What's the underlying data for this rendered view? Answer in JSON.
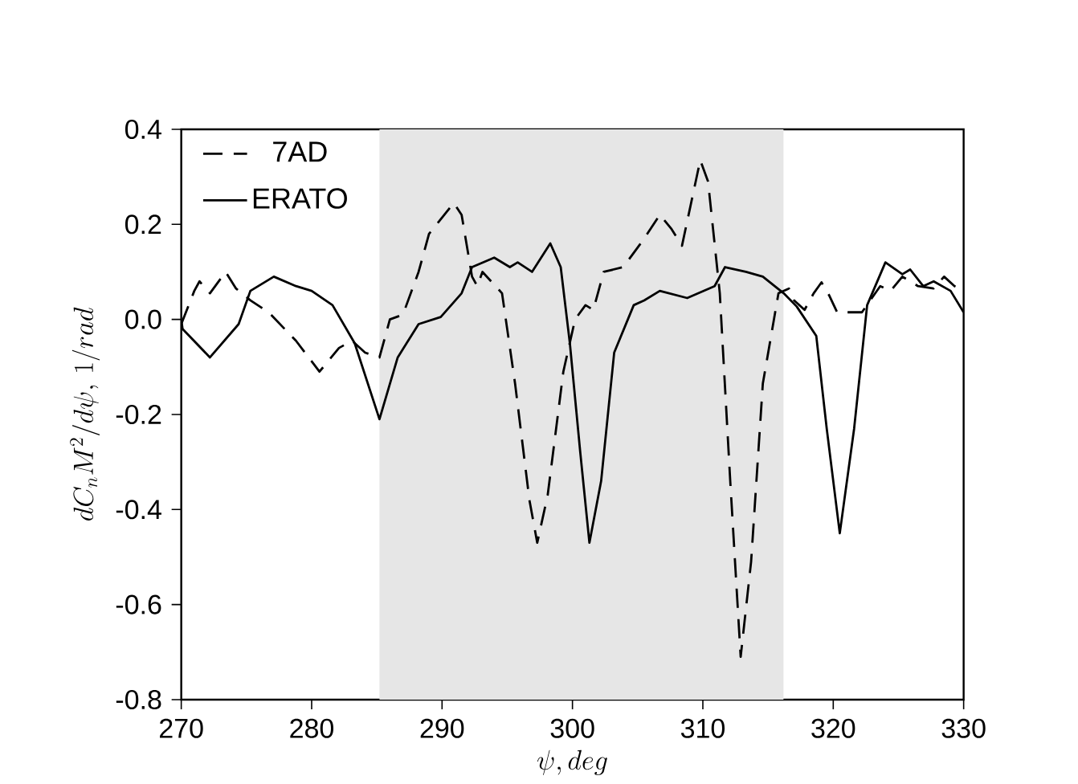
{
  "chart_data": {
    "type": "line",
    "xlabel": "\\psi, deg",
    "ylabel": "dC_{n}M^{2}/d\\psi,\\,1/rad",
    "xlim": [
      270,
      330
    ],
    "xticks": [
      270,
      280,
      290,
      300,
      310,
      320,
      330
    ],
    "ylim": [
      -0.8,
      0.4
    ],
    "yticks": [
      {
        "value": -0.8,
        "label": "-0.8"
      },
      {
        "value": -0.6,
        "label": "-0.6"
      },
      {
        "value": -0.4,
        "label": "-0.4"
      },
      {
        "value": -0.2,
        "label": "-0.2"
      },
      {
        "value": 0,
        "label": "0.0"
      },
      {
        "value": 0.2,
        "label": "0.2"
      },
      {
        "value": 0.4,
        "label": "0.4"
      }
    ],
    "grid": false,
    "legend": "top left",
    "marker": "none",
    "bands": [
      {
        "axis": "x",
        "from": 285.2,
        "to": 316.2,
        "color": "#e6e6e6"
      }
    ],
    "series": [
      {
        "name": "7AD",
        "color": "#000000",
        "line_style": "dashed",
        "x": [
          270,
          271.0,
          271.4,
          272.2,
          273.4,
          274.2,
          275.3,
          276.7,
          278.8,
          280.6,
          282.1,
          283.1,
          284.1,
          285.2,
          286.0,
          287.0,
          288.2,
          289.0,
          290.9,
          291.5,
          292.3,
          292.7,
          293.1,
          294.6,
          295.6,
          296.7,
          297.3,
          298.1,
          299.3,
          300.2,
          301.0,
          301.6,
          302.4,
          303.9,
          305.5,
          306.7,
          307.6,
          308.4,
          309.8,
          310.4,
          311.3,
          312.1,
          312.9,
          313.7,
          314.6,
          315.8,
          316.6,
          317.0,
          317.8,
          318.5,
          319.1,
          319.7,
          320.3,
          322.2,
          323.6,
          324.4,
          325.3,
          326.5,
          327.7,
          328.5,
          329.3,
          330
        ],
        "values": [
          -0.01,
          0.06,
          0.08,
          0.055,
          0.1,
          0.065,
          0.04,
          0.015,
          -0.045,
          -0.11,
          -0.06,
          -0.045,
          -0.07,
          -0.08,
          0.0,
          0.01,
          0.1,
          0.18,
          0.245,
          0.22,
          0.09,
          0.07,
          0.1,
          0.055,
          -0.135,
          -0.38,
          -0.47,
          -0.37,
          -0.11,
          0.0,
          0.03,
          0.02,
          0.1,
          0.11,
          0.17,
          0.22,
          0.19,
          0.155,
          0.335,
          0.29,
          0.055,
          -0.34,
          -0.71,
          -0.51,
          -0.135,
          0.055,
          0.065,
          0.04,
          0.02,
          0.055,
          0.078,
          0.05,
          0.015,
          0.015,
          0.07,
          0.06,
          0.09,
          0.07,
          0.065,
          0.09,
          0.07,
          0.06
        ]
      },
      {
        "name": "ERATO",
        "color": "#000000",
        "line_style": "solid",
        "x": [
          270,
          270.1,
          272.2,
          274.4,
          275.3,
          277.1,
          278.8,
          280.0,
          281.6,
          283.3,
          285.2,
          286.6,
          288.2,
          289.9,
          291.5,
          292.3,
          294.0,
          295.2,
          295.8,
          296.9,
          298.3,
          299.1,
          299.8,
          300.6,
          301.3,
          302.2,
          303.2,
          304.7,
          305.5,
          306.7,
          308.8,
          310.9,
          311.7,
          313.3,
          314.6,
          316.2,
          317.2,
          318.7,
          319.5,
          320.5,
          321.6,
          322.6,
          324.0,
          325.3,
          325.9,
          326.9,
          327.7,
          329.0,
          330
        ],
        "values": [
          0.0,
          -0.02,
          -0.08,
          -0.01,
          0.06,
          0.09,
          0.07,
          0.06,
          0.03,
          -0.05,
          -0.21,
          -0.08,
          -0.01,
          0.005,
          0.055,
          0.11,
          0.13,
          0.11,
          0.12,
          0.1,
          0.16,
          0.11,
          -0.05,
          -0.28,
          -0.47,
          -0.34,
          -0.07,
          0.03,
          0.04,
          0.06,
          0.045,
          0.07,
          0.11,
          0.1,
          0.09,
          0.055,
          0.027,
          -0.035,
          -0.23,
          -0.45,
          -0.23,
          0.03,
          0.12,
          0.095,
          0.105,
          0.07,
          0.08,
          0.06,
          0.015
        ]
      }
    ]
  }
}
